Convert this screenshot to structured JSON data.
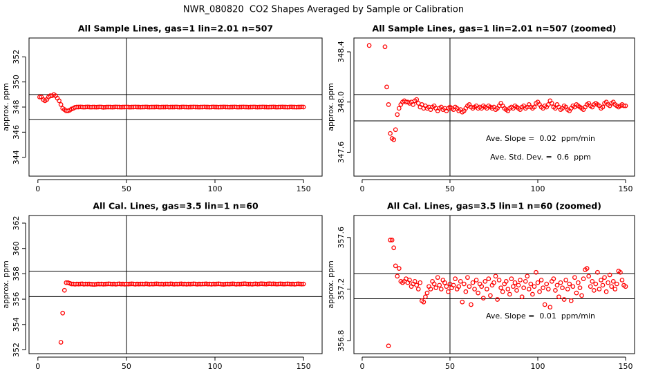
{
  "title": "NWR_080820  CO2 Shapes Averaged by Sample or Calibration",
  "chart_data": [
    {
      "type": "scatter",
      "title": "All Sample Lines, gas=1 lin=2.01 n=507",
      "y_label": "approx. ppm",
      "color": "#ff0000",
      "xlim": [
        -5,
        160.5
      ],
      "ylim": [
        342.5,
        353.5
      ],
      "xticks": [
        0,
        50,
        100,
        150
      ],
      "yticks": [
        344,
        346,
        348,
        350,
        352
      ],
      "hlines": [
        349,
        347
      ],
      "vlines": [
        50
      ],
      "x": [
        1,
        2,
        3,
        4,
        5,
        6,
        7,
        8,
        9,
        10,
        11,
        12,
        13,
        14,
        15,
        16,
        17,
        18,
        19,
        20,
        21,
        22,
        23,
        24,
        25,
        26,
        27,
        28,
        29,
        30,
        31,
        32,
        33,
        34,
        35,
        36,
        37,
        38,
        39,
        40,
        41,
        42,
        43,
        44,
        45,
        46,
        47,
        48,
        49,
        50,
        51,
        52,
        53,
        54,
        55,
        56,
        57,
        58,
        59,
        60,
        61,
        62,
        63,
        64,
        65,
        66,
        67,
        68,
        69,
        70,
        71,
        72,
        73,
        74,
        75,
        76,
        77,
        78,
        79,
        80,
        81,
        82,
        83,
        84,
        85,
        86,
        87,
        88,
        89,
        90,
        91,
        92,
        93,
        94,
        95,
        96,
        97,
        98,
        99,
        100,
        101,
        102,
        103,
        104,
        105,
        106,
        107,
        108,
        109,
        110,
        111,
        112,
        113,
        114,
        115,
        116,
        117,
        118,
        119,
        120,
        121,
        122,
        123,
        124,
        125,
        126,
        127,
        128,
        129,
        130,
        131,
        132,
        133,
        134,
        135,
        136,
        137,
        138,
        139,
        140,
        141,
        142,
        143,
        144,
        145,
        146,
        147,
        148,
        149,
        150
      ],
      "values": [
        348.8,
        348.8,
        348.6,
        348.5,
        348.6,
        348.8,
        348.9,
        348.9,
        349.0,
        348.9,
        348.7,
        348.5,
        348.2,
        347.9,
        347.8,
        347.7,
        347.7,
        347.75,
        347.85,
        347.9,
        347.98,
        348,
        348,
        348.01,
        348,
        347.99,
        348,
        348.01,
        348,
        347.99,
        348,
        348,
        347.99,
        348,
        348.01,
        348,
        347.98,
        347.99,
        348,
        348,
        348,
        347.99,
        348,
        348.01,
        348,
        348,
        347.99,
        348,
        348,
        348.01,
        348,
        347.99,
        348,
        348,
        348.01,
        348,
        348,
        347.99,
        348,
        348,
        348.01,
        348,
        347.99,
        348,
        348,
        348,
        348.01,
        348,
        347.99,
        348,
        348,
        348,
        348.01,
        347.99,
        348,
        348,
        348,
        348.01,
        348,
        347.99,
        348,
        348.01,
        348,
        348,
        347.99,
        348,
        348,
        348.01,
        348,
        348,
        347.99,
        348,
        348,
        348.01,
        348,
        348,
        347.99,
        348,
        348.01,
        348,
        348,
        347.99,
        348,
        348,
        348.01,
        348,
        348,
        347.99,
        348,
        348,
        348.01,
        348,
        347.99,
        348,
        348,
        348.01,
        348,
        348,
        347.99,
        348,
        348,
        348.01,
        348,
        347.99,
        348,
        348,
        348.01,
        348,
        348,
        347.99,
        348,
        348,
        348.01,
        348,
        347.99,
        348,
        348,
        348.01,
        348,
        348,
        347.99,
        348,
        348.01,
        348,
        348,
        347.99,
        348,
        348,
        348.01,
        348
      ]
    },
    {
      "type": "scatter",
      "title": "All Sample Lines, gas=1 lin=2.01 n=507 (zoomed)",
      "y_label": "approx. ppm",
      "color": "#ff0000",
      "xlim": [
        -4.7,
        155.1
      ],
      "ylim": [
        347.41,
        348.51
      ],
      "xticks": [
        0,
        50,
        100,
        150
      ],
      "yticks": [
        347.6,
        {
          "value": 348,
          "label": "348.0"
        },
        348.4
      ],
      "hlines": [
        348.06,
        347.85
      ],
      "vlines": [
        50
      ],
      "annotations": [
        "Ave. Slope =  0.02  ppm/min",
        "Ave. Std. Dev. =  0.6  ppm"
      ],
      "x": [
        4,
        13,
        14,
        15,
        16,
        17,
        18,
        19,
        20,
        21,
        22,
        23,
        24,
        25,
        26,
        27,
        28,
        29,
        30,
        31,
        32,
        33,
        34,
        35,
        36,
        37,
        38,
        39,
        40,
        41,
        42,
        43,
        44,
        45,
        46,
        47,
        48,
        49,
        50,
        51,
        52,
        53,
        54,
        55,
        56,
        57,
        58,
        59,
        60,
        61,
        62,
        63,
        64,
        65,
        66,
        67,
        68,
        69,
        70,
        71,
        72,
        73,
        74,
        75,
        76,
        77,
        78,
        79,
        80,
        81,
        82,
        83,
        84,
        85,
        86,
        87,
        88,
        89,
        90,
        91,
        92,
        93,
        94,
        95,
        96,
        97,
        98,
        99,
        100,
        101,
        102,
        103,
        104,
        105,
        106,
        107,
        108,
        109,
        110,
        111,
        112,
        113,
        114,
        115,
        116,
        117,
        118,
        119,
        120,
        121,
        122,
        123,
        124,
        125,
        126,
        127,
        128,
        129,
        130,
        131,
        132,
        133,
        134,
        135,
        136,
        137,
        138,
        139,
        140,
        141,
        142,
        143,
        144,
        145,
        146,
        147,
        148,
        149,
        150
      ],
      "values": [
        348.45,
        348.44,
        348.12,
        347.98,
        347.75,
        347.71,
        347.7,
        347.78,
        347.9,
        347.95,
        347.98,
        348.0,
        348.01,
        348.0,
        348.0,
        347.99,
        348.0,
        347.98,
        348.01,
        348.02,
        347.99,
        347.96,
        347.98,
        347.95,
        347.97,
        347.95,
        347.96,
        347.94,
        347.96,
        347.97,
        347.95,
        347.93,
        347.95,
        347.96,
        347.94,
        347.95,
        347.93,
        347.95,
        347.96,
        347.95,
        347.94,
        347.96,
        347.95,
        347.93,
        347.94,
        347.92,
        347.93,
        347.95,
        347.97,
        347.98,
        347.96,
        347.95,
        347.96,
        347.97,
        347.95,
        347.96,
        347.95,
        347.97,
        347.96,
        347.95,
        347.97,
        347.96,
        347.95,
        347.96,
        347.94,
        347.95,
        347.97,
        347.99,
        347.97,
        347.95,
        347.94,
        347.93,
        347.95,
        347.96,
        347.95,
        347.97,
        347.96,
        347.95,
        347.94,
        347.96,
        347.97,
        347.95,
        347.96,
        347.98,
        347.96,
        347.95,
        347.96,
        347.99,
        348.0,
        347.98,
        347.96,
        347.95,
        347.97,
        347.96,
        347.98,
        348.01,
        347.99,
        347.96,
        347.95,
        347.98,
        347.96,
        347.94,
        347.95,
        347.97,
        347.96,
        347.94,
        347.93,
        347.95,
        347.97,
        347.96,
        347.98,
        347.97,
        347.96,
        347.95,
        347.94,
        347.96,
        347.98,
        347.99,
        347.97,
        347.96,
        347.98,
        347.99,
        347.98,
        347.97,
        347.95,
        347.96,
        347.99,
        348.0,
        347.98,
        347.97,
        347.99,
        348.0,
        347.98,
        347.97,
        347.96,
        347.97,
        347.98,
        347.97,
        347.97
      ]
    },
    {
      "type": "scatter",
      "title": "All Cal. Lines, gas=3.5 lin=1 n=60",
      "y_label": "approx. ppm",
      "color": "#ff0000",
      "xlim": [
        -5,
        160.5
      ],
      "ylim": [
        351.7,
        362.6
      ],
      "xticks": [
        0,
        50,
        100,
        150
      ],
      "yticks": [
        352,
        354,
        356,
        358,
        360,
        362
      ],
      "hlines": [
        358.2,
        356.2
      ],
      "vlines": [
        50
      ],
      "x": [
        13,
        14,
        15,
        16,
        17,
        18,
        19,
        20,
        21,
        22,
        23,
        24,
        25,
        26,
        27,
        28,
        29,
        30,
        31,
        32,
        33,
        34,
        35,
        36,
        37,
        38,
        39,
        40,
        41,
        42,
        43,
        44,
        45,
        46,
        47,
        48,
        49,
        50,
        51,
        52,
        53,
        54,
        55,
        56,
        57,
        58,
        59,
        60,
        61,
        62,
        63,
        64,
        65,
        66,
        67,
        68,
        69,
        70,
        71,
        72,
        73,
        74,
        75,
        76,
        77,
        78,
        79,
        80,
        81,
        82,
        83,
        84,
        85,
        86,
        87,
        88,
        89,
        90,
        91,
        92,
        93,
        94,
        95,
        96,
        97,
        98,
        99,
        100,
        101,
        102,
        103,
        104,
        105,
        106,
        107,
        108,
        109,
        110,
        111,
        112,
        113,
        114,
        115,
        116,
        117,
        118,
        119,
        120,
        121,
        122,
        123,
        124,
        125,
        126,
        127,
        128,
        129,
        130,
        131,
        132,
        133,
        134,
        135,
        136,
        137,
        138,
        139,
        140,
        141,
        142,
        143,
        144,
        145,
        146,
        147,
        148,
        149,
        150
      ],
      "values": [
        352.6,
        354.9,
        356.7,
        357.3,
        357.3,
        357.25,
        357.2,
        357.2,
        357.18,
        357.2,
        357.19,
        357.2,
        357.21,
        357.18,
        357.2,
        357.19,
        357.2,
        357.18,
        357.17,
        357.16,
        357.18,
        357.2,
        357.19,
        357.2,
        357.18,
        357.19,
        357.2,
        357.21,
        357.2,
        357.19,
        357.2,
        357.18,
        357.2,
        357.21,
        357.19,
        357.2,
        357.18,
        357.2,
        357.19,
        357.2,
        357.21,
        357.2,
        357.18,
        357.2,
        357.19,
        357.2,
        357.2,
        357.19,
        357.21,
        357.2,
        357.18,
        357.2,
        357.19,
        357.2,
        357.21,
        357.2,
        357.19,
        357.2,
        357.18,
        357.2,
        357.2,
        357.19,
        357.21,
        357.2,
        357.18,
        357.2,
        357.19,
        357.2,
        357.21,
        357.19,
        357.2,
        357.18,
        357.2,
        357.19,
        357.2,
        357.21,
        357.2,
        357.18,
        357.2,
        357.19,
        357.2,
        357.2,
        357.21,
        357.19,
        357.2,
        357.18,
        357.2,
        357.19,
        357.2,
        357.21,
        357.2,
        357.18,
        357.17,
        357.19,
        357.2,
        357.19,
        357.2,
        357.21,
        357.2,
        357.18,
        357.2,
        357.19,
        357.2,
        357.21,
        357.22,
        357.2,
        357.19,
        357.2,
        357.18,
        357.2,
        357.21,
        357.19,
        357.2,
        357.22,
        357.21,
        357.2,
        357.19,
        357.21,
        357.22,
        357.2,
        357.21,
        357.2,
        357.19,
        357.2,
        357.21,
        357.2,
        357.19,
        357.2,
        357.21,
        357.2,
        357.19,
        357.2,
        357.18,
        357.2,
        357.21,
        357.2,
        357.19,
        357.2
      ]
    },
    {
      "type": "scatter",
      "title": "All Cal. Lines, gas=3.5 lin=1 n=60 (zoomed)",
      "y_label": "approx. ppm",
      "color": "#ff0000",
      "xlim": [
        -4.7,
        155.1
      ],
      "ylim": [
        356.7,
        357.77
      ],
      "xticks": [
        0,
        50,
        100,
        150
      ],
      "yticks": [
        356.8,
        357.2,
        357.6
      ],
      "hlines": [
        357.32,
        357.125
      ],
      "vlines": [
        50
      ],
      "annotations": [
        "Ave. Slope =  0.01  ppm/min"
      ],
      "x": [
        15,
        16,
        17,
        18,
        19,
        20,
        21,
        22,
        23,
        24,
        25,
        26,
        27,
        28,
        29,
        30,
        31,
        32,
        33,
        34,
        35,
        36,
        37,
        38,
        39,
        40,
        41,
        42,
        43,
        44,
        45,
        46,
        47,
        48,
        49,
        50,
        51,
        52,
        53,
        54,
        55,
        56,
        57,
        58,
        59,
        60,
        61,
        62,
        63,
        64,
        65,
        66,
        67,
        68,
        69,
        70,
        71,
        72,
        73,
        74,
        75,
        76,
        77,
        78,
        79,
        80,
        81,
        82,
        83,
        84,
        85,
        86,
        87,
        88,
        89,
        90,
        91,
        92,
        93,
        94,
        95,
        96,
        97,
        98,
        99,
        100,
        101,
        102,
        103,
        104,
        105,
        106,
        107,
        108,
        109,
        110,
        111,
        112,
        113,
        114,
        115,
        116,
        117,
        118,
        119,
        120,
        121,
        122,
        123,
        124,
        125,
        126,
        127,
        128,
        129,
        130,
        131,
        132,
        133,
        134,
        135,
        136,
        137,
        138,
        139,
        140,
        141,
        142,
        143,
        144,
        145,
        146,
        147,
        148,
        149,
        150
      ],
      "values": [
        356.76,
        357.58,
        357.58,
        357.52,
        357.38,
        357.3,
        357.36,
        357.26,
        357.25,
        357.26,
        357.28,
        357.25,
        357.27,
        357.22,
        357.24,
        357.26,
        357.23,
        357.2,
        357.25,
        357.11,
        357.1,
        357.14,
        357.17,
        357.22,
        357.2,
        357.26,
        357.24,
        357.21,
        357.29,
        357.23,
        357.2,
        357.27,
        357.25,
        357.22,
        357.18,
        357.24,
        357.21,
        357.23,
        357.28,
        357.2,
        357.22,
        357.26,
        357.1,
        357.24,
        357.18,
        357.29,
        357.22,
        357.08,
        357.25,
        357.2,
        357.27,
        357.17,
        357.24,
        357.22,
        357.13,
        357.26,
        357.2,
        357.28,
        357.15,
        357.23,
        357.25,
        357.3,
        357.12,
        357.27,
        357.21,
        357.18,
        357.24,
        357.26,
        357.2,
        357.16,
        357.28,
        357.22,
        357.25,
        357.19,
        357.23,
        357.27,
        357.14,
        357.21,
        357.26,
        357.3,
        357.2,
        357.24,
        357.16,
        357.22,
        357.33,
        357.25,
        357.18,
        357.27,
        357.21,
        357.08,
        357.24,
        357.2,
        357.06,
        357.26,
        357.28,
        357.19,
        357.23,
        357.14,
        357.25,
        357.21,
        357.12,
        357.27,
        357.2,
        357.24,
        357.11,
        357.22,
        357.29,
        357.17,
        357.25,
        357.21,
        357.15,
        357.28,
        357.35,
        357.36,
        357.3,
        357.22,
        357.26,
        357.19,
        357.24,
        357.33,
        357.2,
        357.27,
        357.23,
        357.29,
        357.18,
        357.25,
        357.31,
        357.22,
        357.26,
        357.2,
        357.24,
        357.34,
        357.33,
        357.27,
        357.23,
        357.22
      ]
    }
  ]
}
